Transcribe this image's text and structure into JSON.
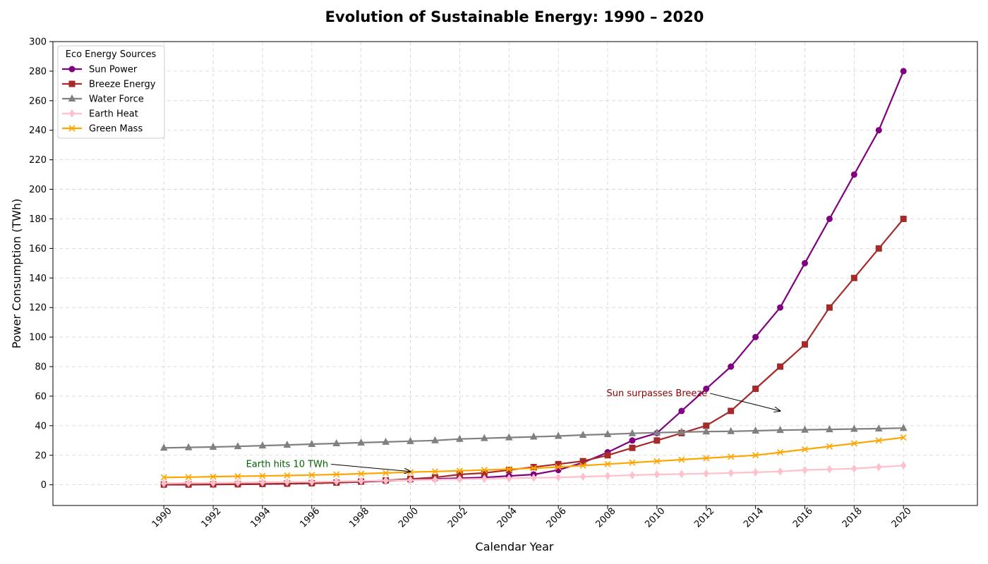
{
  "chart_data": {
    "type": "line",
    "title": "Evolution of Sustainable Energy: 1990 – 2020",
    "xlabel": "Calendar Year",
    "ylabel": "Power Consumption (TWh)",
    "x": [
      1990,
      1991,
      1992,
      1993,
      1994,
      1995,
      1996,
      1997,
      1998,
      1999,
      2000,
      2001,
      2002,
      2003,
      2004,
      2005,
      2006,
      2007,
      2008,
      2009,
      2010,
      2011,
      2012,
      2013,
      2014,
      2015,
      2016,
      2017,
      2018,
      2019,
      2020
    ],
    "xticks": [
      1990,
      1992,
      1994,
      1996,
      1998,
      2000,
      2002,
      2004,
      2006,
      2008,
      2010,
      2012,
      2014,
      2016,
      2018,
      2020
    ],
    "xlim": [
      1985.5,
      2023
    ],
    "ylim": [
      -14,
      300
    ],
    "yticks": [
      0,
      20,
      40,
      60,
      80,
      100,
      120,
      140,
      160,
      180,
      200,
      220,
      240,
      260,
      280,
      300
    ],
    "grid": true,
    "legend": {
      "title": "Eco Energy Sources",
      "placement": "top-left"
    },
    "series": [
      {
        "name": "Sun Power",
        "color": "#800080",
        "marker": "circle",
        "values": [
          0.1,
          0.1,
          0.2,
          0.3,
          0.5,
          0.7,
          1.0,
          1.4,
          2.0,
          2.6,
          3.3,
          4.0,
          4.5,
          5.0,
          6.0,
          7.0,
          10.0,
          15.0,
          22.0,
          30.0,
          35.0,
          50.0,
          65.0,
          80.0,
          100.0,
          120.0,
          150.0,
          180.0,
          210.0,
          240.0,
          280.0
        ]
      },
      {
        "name": "Breeze Energy",
        "color": "#A52A2A",
        "marker": "square",
        "values": [
          0.2,
          0.2,
          0.3,
          0.4,
          0.6,
          0.8,
          1.1,
          1.5,
          2.2,
          3.0,
          4.0,
          5.0,
          7.0,
          8.0,
          10.0,
          12.0,
          14.0,
          16.0,
          20.0,
          25.0,
          30.0,
          35.0,
          40.0,
          50.0,
          65.0,
          80.0,
          95.0,
          120.0,
          140.0,
          160.0,
          180.0
        ]
      },
      {
        "name": "Water Force",
        "color": "#808080",
        "marker": "triangle",
        "values": [
          25.0,
          25.3,
          25.6,
          26.0,
          26.5,
          27.0,
          27.5,
          28.0,
          28.5,
          29.0,
          29.5,
          30.0,
          31.0,
          31.5,
          32.0,
          32.5,
          33.0,
          33.7,
          34.2,
          34.8,
          35.3,
          35.7,
          36.0,
          36.2,
          36.6,
          37.0,
          37.2,
          37.5,
          37.8,
          38.0,
          38.4
        ]
      },
      {
        "name": "Earth Heat",
        "color": "#FFC0CB",
        "marker": "diamond",
        "values": [
          1.0,
          1.2,
          1.3,
          1.5,
          1.7,
          1.9,
          2.0,
          2.3,
          2.6,
          2.9,
          3.2,
          3.5,
          3.8,
          4.1,
          4.4,
          4.7,
          5.0,
          5.5,
          6.0,
          6.5,
          7.0,
          7.3,
          7.6,
          8.0,
          8.5,
          9.0,
          10.0,
          10.5,
          11.0,
          12.0,
          13.0
        ]
      },
      {
        "name": "Green Mass",
        "color": "#FFA500",
        "marker": "x",
        "values": [
          5.0,
          5.2,
          5.5,
          5.8,
          6.0,
          6.3,
          6.6,
          7.0,
          7.5,
          8.0,
          8.6,
          9.0,
          9.5,
          10.0,
          10.6,
          11.2,
          12.0,
          13.0,
          14.0,
          15.0,
          16.0,
          17.0,
          18.0,
          19.0,
          20.0,
          22.0,
          24.0,
          26.0,
          28.0,
          30.0,
          32.0
        ]
      }
    ],
    "annotations": [
      {
        "text": "Earth hits 10 TWh",
        "text_at": [
          1995,
          12
        ],
        "arrow_to": [
          2000,
          9
        ],
        "color": "#006400"
      },
      {
        "text": "Sun surpasses Breeze",
        "text_at": [
          2010,
          60
        ],
        "arrow_to": [
          2015,
          50
        ],
        "color": "#8B0000"
      }
    ]
  }
}
